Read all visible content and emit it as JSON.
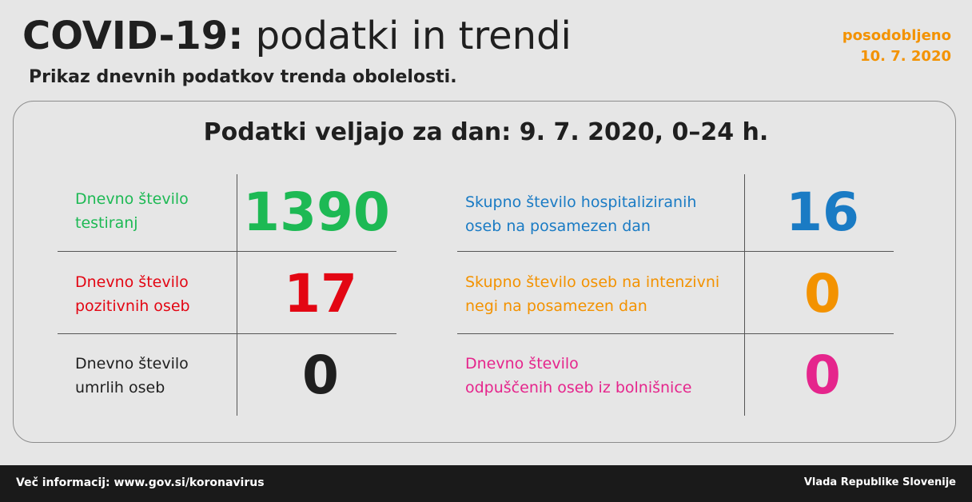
{
  "header": {
    "title_bold": "COVID-19:",
    "title_light": "podatki in trendi",
    "subtitle": "Prikaz dnevnih podatkov trenda obolelosti.",
    "updated_label": "posodobljeno",
    "updated_date": "10. 7. 2020"
  },
  "card": {
    "title": "Podatki veljajo za dan: 9. 7. 2020, 0–24 h."
  },
  "stats": {
    "tested": {
      "line1": "Dnevno število",
      "line2": "testiranj",
      "value": "1390",
      "color": "#1db954"
    },
    "positive": {
      "line1": "Dnevno število",
      "line2": "pozitivnih oseb",
      "value": "17",
      "color": "#e30613"
    },
    "deaths": {
      "line1": "Dnevno število",
      "line2": "umrlih oseb",
      "value": "0",
      "color": "#1f1f1f"
    },
    "hospitalized": {
      "line1": "Skupno število hospitaliziranih",
      "line2": "oseb na posamezen dan",
      "value": "16",
      "color": "#1a7bc4"
    },
    "icu": {
      "line1": "Skupno število oseb na intenzivni",
      "line2": "negi na posamezen dan",
      "value": "0",
      "color": "#f39200"
    },
    "discharged": {
      "line1": "Dnevno število",
      "line2": "odpuščenih oseb iz bolnišnice",
      "value": "0",
      "color": "#e5258c"
    }
  },
  "footer": {
    "info": "Več informacij: www.gov.si/koronavirus",
    "org": "Vlada Republike Slovenije"
  }
}
